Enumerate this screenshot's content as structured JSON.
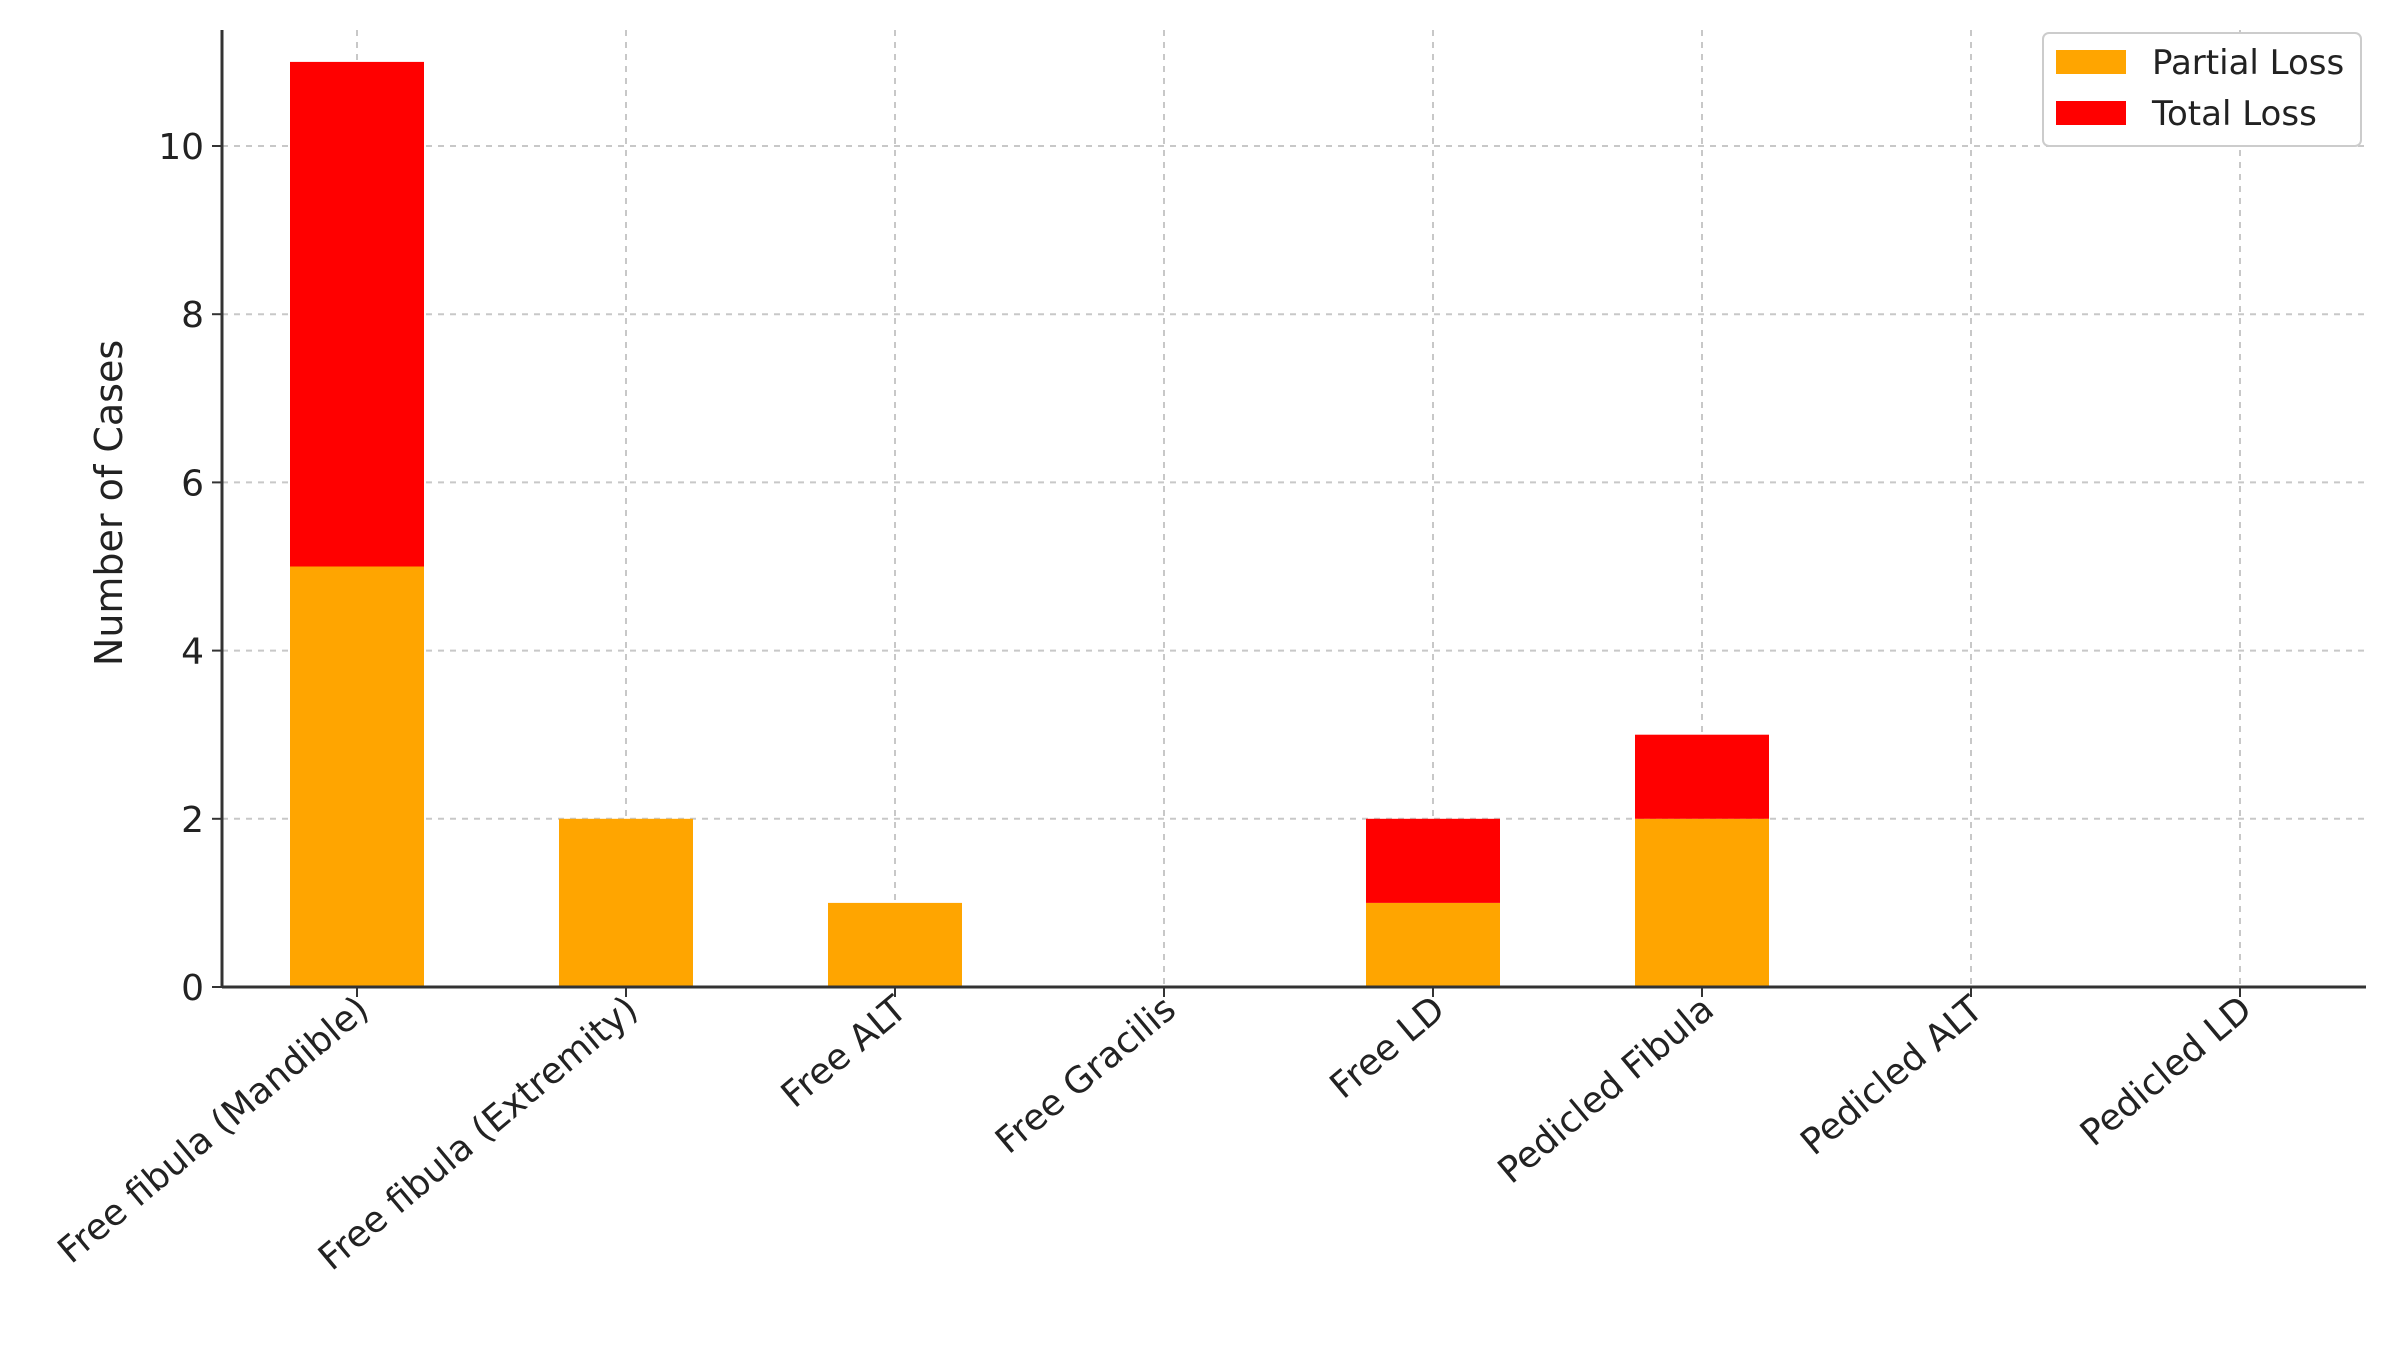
{
  "chart_data": {
    "type": "bar",
    "stacked": true,
    "categories": [
      "Free fibula (Mandible)",
      "Free fibula (Extremity)",
      "Free ALT",
      "Free Gracilis",
      "Free LD",
      "Pedicled Fibula",
      "Pedicled ALT",
      "Pedicled LD"
    ],
    "series": [
      {
        "name": "Partial Loss",
        "color": "#FFA500",
        "values": [
          5,
          2,
          1,
          0,
          1,
          2,
          0,
          0
        ]
      },
      {
        "name": "Total Loss",
        "color": "#FF0000",
        "values": [
          6,
          0,
          0,
          0,
          1,
          1,
          0,
          0
        ]
      }
    ],
    "title": "",
    "xlabel": "",
    "ylabel": "Number of Cases",
    "ylim": [
      0,
      11.5
    ],
    "yticks": [
      "0",
      "2",
      "4",
      "6",
      "8",
      "10"
    ],
    "grid": true,
    "legend_position": "top-right"
  }
}
